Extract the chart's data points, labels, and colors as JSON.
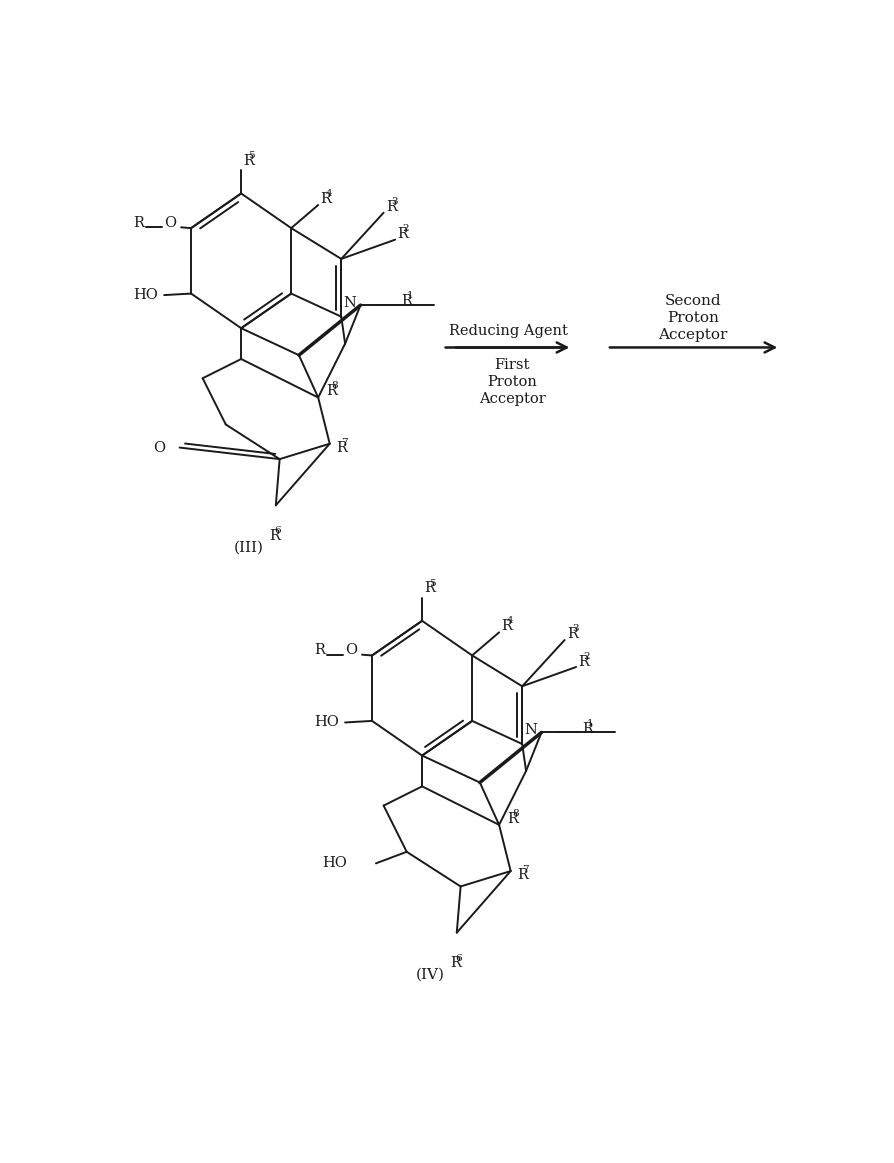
{
  "bg_color": "#ffffff",
  "text_color": "#1a1a1a",
  "line_color": "#1a1a1a",
  "lw": 1.4,
  "fs": 10.5,
  "fs_sup": 7.5,
  "label_III": "(III)",
  "label_IV": "(IV)",
  "arrow1_above": "Reducing Agent",
  "arrow1_below": [
    "First",
    "Proton",
    "Acceptor"
  ],
  "arrow2_above": [
    "Second",
    "Proton",
    "Acceptor"
  ]
}
